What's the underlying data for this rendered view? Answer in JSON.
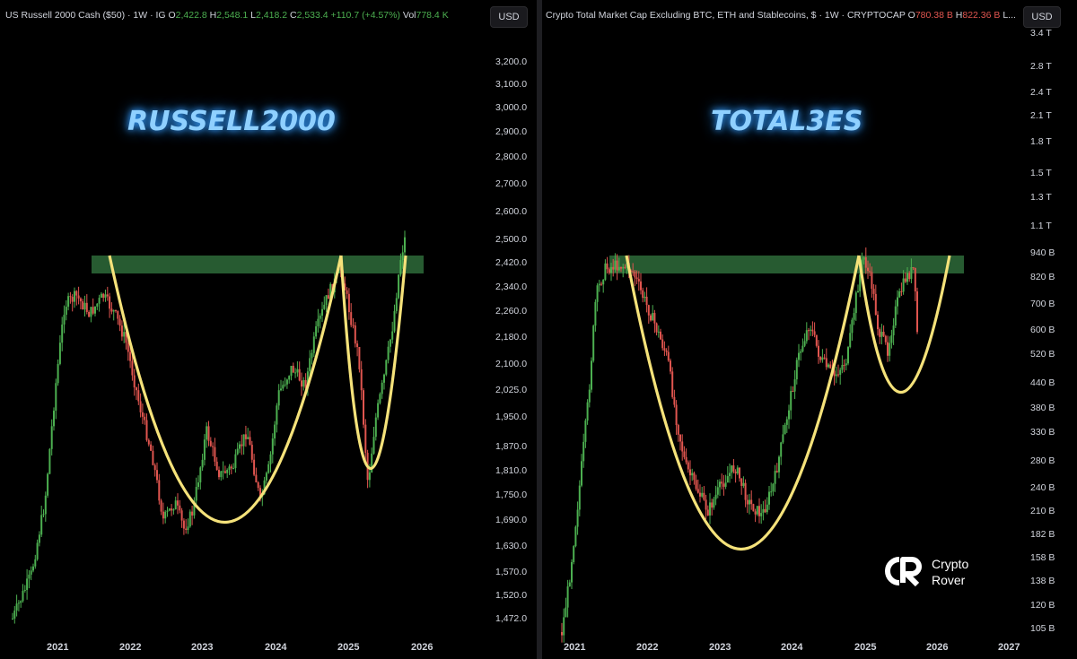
{
  "left": {
    "header": {
      "prefix": "US Russell 2000 Cash ($50) · 1W · IG  ",
      "o_label": "O",
      "o": "2,422.8",
      "h_label": "  H",
      "h": "2,548.1",
      "l_label": "  L",
      "l": "2,418.2",
      "c_label": "  C",
      "c": "2,533.4",
      "change": "  +110.7 (+4.57%)",
      "vol_label": "  Vol",
      "vol": "778.4 K"
    },
    "currency": "USD",
    "overlay_title": "RUSSELL2000",
    "y_ticks": [
      "3,200.0",
      "3,100.0",
      "3,000.0",
      "2,900.0",
      "2,800.0",
      "2,700.0",
      "2,600.0",
      "2,500.0",
      "2,420.0",
      "2,340.0",
      "2,260.0",
      "2,180.0",
      "2,100.0",
      "2,025.0",
      "1,950.0",
      "1,870.0",
      "1,810.0",
      "1,750.0",
      "1,690.0",
      "1,630.0",
      "1,570.0",
      "1,520.0",
      "1,472.0"
    ],
    "x_ticks": [
      "2021",
      "2022",
      "2023",
      "2024",
      "2025",
      "2026"
    ]
  },
  "right": {
    "header": {
      "prefix": "Crypto Total Market Cap Excluding BTC, ETH and Stablecoins, $ · 1W · CRYPTOCAP  ",
      "o_label": "O",
      "o": "780.38 B",
      "h_label": "  H",
      "h": "822.36 B",
      "l_label": "  L..."
    },
    "currency": "USD",
    "overlay_title": "TOTAL3ES",
    "y_ticks": [
      "3.4 T",
      "2.8 T",
      "2.4 T",
      "2.1 T",
      "1.8 T",
      "1.5 T",
      "1.3 T",
      "1.1 T",
      "940 B",
      "820 B",
      "700 B",
      "600 B",
      "520 B",
      "440 B",
      "380 B",
      "330 B",
      "280 B",
      "240 B",
      "210 B",
      "182 B",
      "158 B",
      "138 B",
      "120 B",
      "105 B"
    ],
    "x_ticks": [
      "2021",
      "2022",
      "2023",
      "2024",
      "2025",
      "2026",
      "2027"
    ]
  },
  "watermark": {
    "line1": "Crypto",
    "line2": "Rover"
  },
  "colors": {
    "up": "#4caf50",
    "down": "#e0554f",
    "curve": "#f5e27a",
    "zone": "#2e6b3a",
    "glow": "#8fd0ff"
  },
  "chart_data": [
    {
      "type": "candlestick",
      "title": "US Russell 2000 Cash ($50) · 1W · IG",
      "ylabel": "USD",
      "ylim": [
        1450,
        3250
      ],
      "x": [
        "2021",
        "2021.5",
        "2022",
        "2022.5",
        "2023",
        "2023.5",
        "2024",
        "2024.5",
        "2025",
        "2025.5",
        "2025.8"
      ],
      "values": [
        1500,
        2300,
        2200,
        1750,
        1800,
        1700,
        2000,
        2250,
        2420,
        1760,
        2533
      ],
      "annotations": [
        "resistance zone 2,420-2,470",
        "cup and handle curves"
      ]
    },
    {
      "type": "candlestick",
      "title": "Crypto Total Market Cap Excluding BTC, ETH and Stablecoins, $ · 1W · CRYPTOCAP",
      "ylabel": "USD",
      "scale": "log",
      "x": [
        "2021",
        "2021.5",
        "2022",
        "2022.5",
        "2023",
        "2023.5",
        "2024",
        "2024.5",
        "2025",
        "2025.5",
        "2025.8"
      ],
      "values": [
        105,
        650,
        900,
        260,
        230,
        200,
        550,
        500,
        940,
        600,
        780
      ],
      "annotations": [
        "resistance zone ~900-960 B",
        "cup and handle curves"
      ]
    }
  ]
}
